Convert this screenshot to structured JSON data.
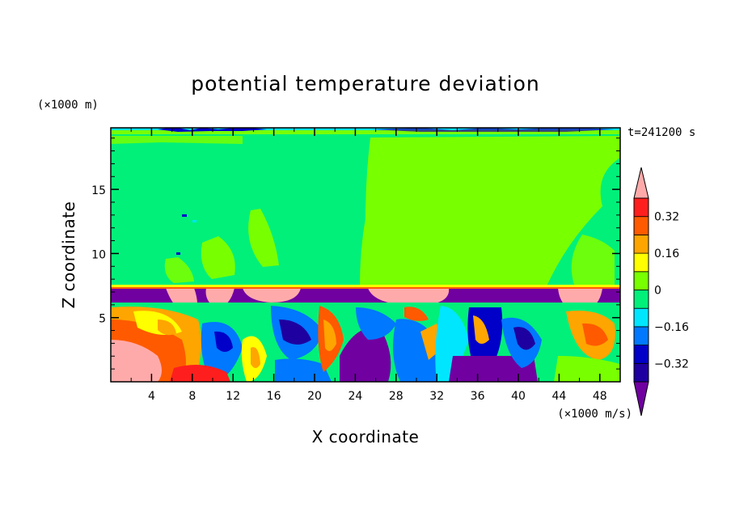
{
  "chart_data": {
    "type": "heatmap",
    "title": "potential temperature deviation",
    "xlabel": "X coordinate",
    "ylabel": "Z coordinate",
    "x_unit": "(×1000 m/s)",
    "y_unit": "(×1000 m)",
    "time_label": "t=241200 s",
    "xlim": [
      0,
      50
    ],
    "ylim": [
      0,
      19.8
    ],
    "x_ticks": [
      4,
      8,
      12,
      16,
      20,
      24,
      28,
      32,
      36,
      40,
      44,
      48
    ],
    "x_tick_labels": [
      "4",
      "8",
      "12",
      "16",
      "20",
      "24",
      "28",
      "32",
      "36",
      "40",
      "44",
      "48"
    ],
    "y_ticks": [
      5,
      10,
      15
    ],
    "y_tick_labels": [
      "5",
      "10",
      "15"
    ],
    "colorbar": {
      "labels": [
        {
          "value": 0.32,
          "text": "0.32"
        },
        {
          "value": 0.16,
          "text": "0.16"
        },
        {
          "value": 0,
          "text": "0"
        },
        {
          "value": -0.16,
          "text": "−0.16"
        },
        {
          "value": -0.32,
          "text": "−0.32"
        }
      ],
      "levels": [
        -0.4,
        -0.32,
        -0.24,
        -0.16,
        -0.08,
        0,
        0.08,
        0.16,
        0.24,
        0.32,
        0.4
      ],
      "colors": [
        "#7000a0",
        "#1e00a0",
        "#0000c8",
        "#0078ff",
        "#00e6ff",
        "#00f07a",
        "#78ff00",
        "#ffff00",
        "#ffa500",
        "#ff5a00",
        "#ff1e1e",
        "#ffaaaa"
      ]
    }
  }
}
